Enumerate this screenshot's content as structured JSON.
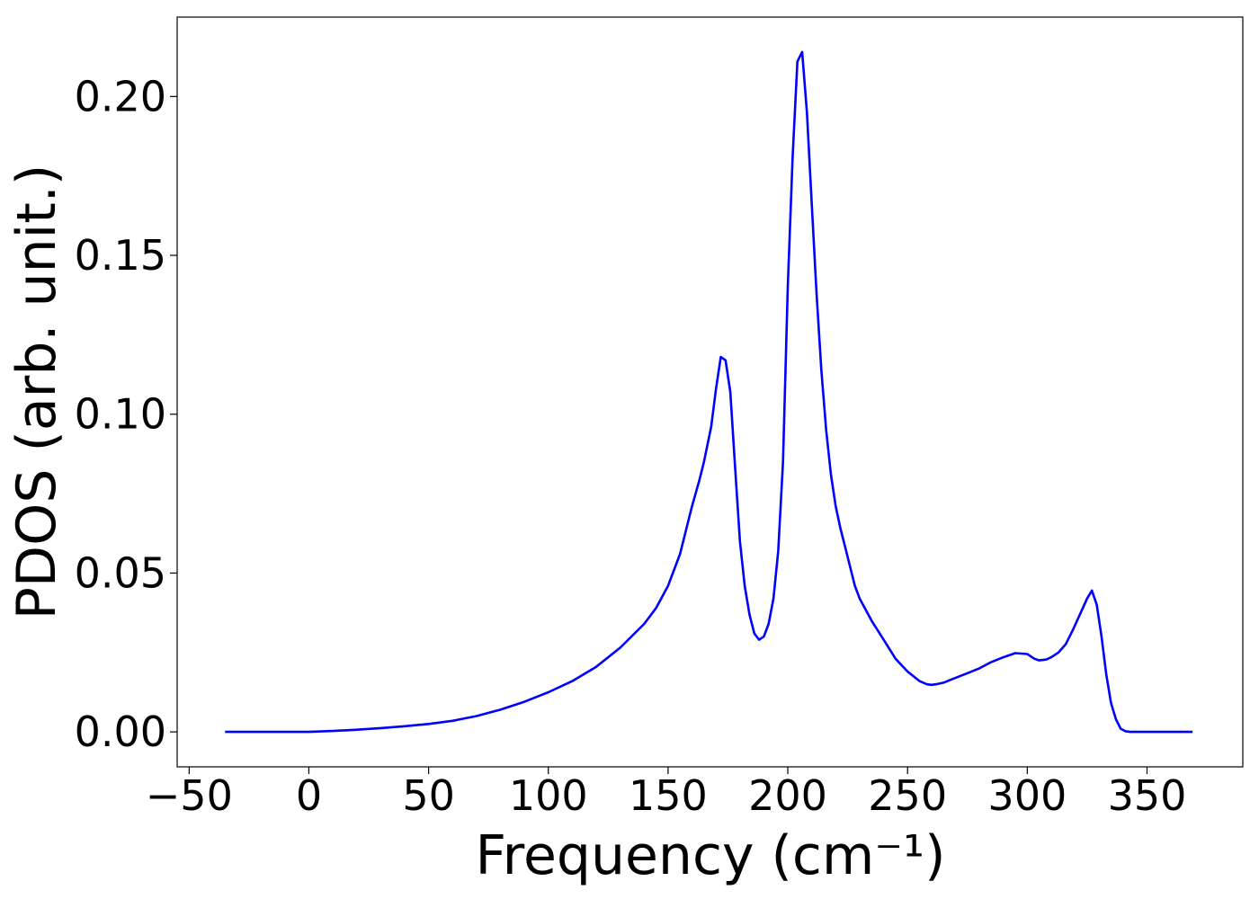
{
  "chart_data": {
    "type": "line",
    "title": "",
    "xlabel": "Frequency (cm⁻¹)",
    "ylabel": "PDOS (arb. unit.)",
    "xlim": [
      -55,
      390
    ],
    "ylim": [
      -0.011,
      0.225
    ],
    "grid": false,
    "legend": "none",
    "xticks": [
      -50,
      0,
      50,
      100,
      150,
      200,
      250,
      300,
      350
    ],
    "xtick_labels": [
      "−50",
      "0",
      "50",
      "100",
      "150",
      "200",
      "250",
      "300",
      "350"
    ],
    "yticks": [
      0.0,
      0.05,
      0.1,
      0.15,
      0.2
    ],
    "ytick_labels": [
      "0.00",
      "0.05",
      "0.10",
      "0.15",
      "0.20"
    ],
    "colors": {
      "line": "#0000ff",
      "axes": "#000000"
    },
    "series": [
      {
        "x": [
          -35,
          -20,
          -10,
          0,
          10,
          20,
          30,
          40,
          50,
          60,
          70,
          80,
          90,
          100,
          110,
          120,
          130,
          140,
          145,
          150,
          155,
          160,
          163,
          165,
          168,
          170,
          172,
          174,
          176,
          178,
          180,
          182,
          184,
          186,
          188,
          190,
          192,
          194,
          196,
          198,
          200,
          202,
          204,
          206,
          208,
          210,
          212,
          214,
          216,
          218,
          220,
          222,
          224,
          226,
          228,
          230,
          235,
          240,
          245,
          250,
          255,
          258,
          260,
          262,
          265,
          270,
          275,
          280,
          285,
          290,
          295,
          300,
          303,
          305,
          308,
          310,
          313,
          316,
          319,
          322,
          325,
          327,
          329,
          331,
          333,
          335,
          337,
          339,
          341,
          343,
          345,
          348,
          355,
          360,
          369
        ],
        "y": [
          0.0,
          0.0,
          0.0,
          0.0,
          0.0003,
          0.0007,
          0.0012,
          0.0018,
          0.0025,
          0.0035,
          0.005,
          0.007,
          0.0095,
          0.0125,
          0.016,
          0.0205,
          0.0265,
          0.034,
          0.039,
          0.046,
          0.056,
          0.071,
          0.079,
          0.085,
          0.096,
          0.108,
          0.118,
          0.117,
          0.107,
          0.083,
          0.06,
          0.046,
          0.037,
          0.031,
          0.029,
          0.03,
          0.034,
          0.042,
          0.057,
          0.085,
          0.14,
          0.181,
          0.211,
          0.214,
          0.195,
          0.166,
          0.138,
          0.114,
          0.095,
          0.081,
          0.071,
          0.064,
          0.058,
          0.052,
          0.046,
          0.042,
          0.035,
          0.029,
          0.023,
          0.019,
          0.016,
          0.015,
          0.0148,
          0.015,
          0.0155,
          0.017,
          0.0185,
          0.02,
          0.022,
          0.0235,
          0.0248,
          0.0245,
          0.023,
          0.0225,
          0.0228,
          0.0235,
          0.025,
          0.0275,
          0.032,
          0.037,
          0.042,
          0.0445,
          0.04,
          0.03,
          0.018,
          0.009,
          0.004,
          0.001,
          0.0002,
          0.0,
          0.0,
          0.0,
          0.0,
          0.0,
          0.0
        ]
      }
    ]
  }
}
